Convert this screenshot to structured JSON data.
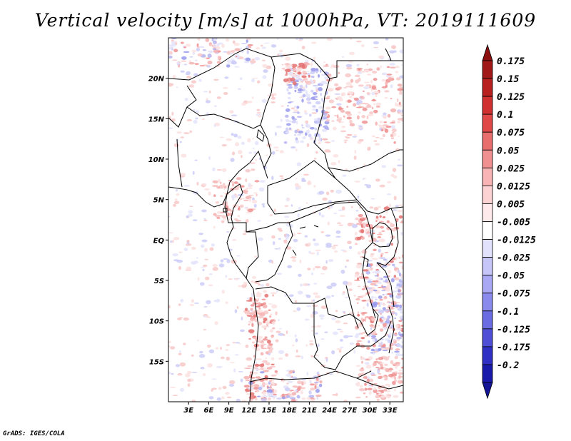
{
  "title": "Vertical velocity [m/s] at 1000hPa, VT: 2019111609",
  "credit": "GrADS: IGES/COLA",
  "map": {
    "lon_range": [
      0,
      35
    ],
    "lat_range": [
      -20,
      25
    ],
    "lat_ticks": [
      {
        "value": 20,
        "label": "20N"
      },
      {
        "value": 15,
        "label": "15N"
      },
      {
        "value": 10,
        "label": "10N"
      },
      {
        "value": 5,
        "label": "5N"
      },
      {
        "value": 0,
        "label": "EQ"
      },
      {
        "value": -5,
        "label": "5S"
      },
      {
        "value": -10,
        "label": "10S"
      },
      {
        "value": -15,
        "label": "15S"
      }
    ],
    "lon_ticks": [
      {
        "value": 3,
        "label": "3E"
      },
      {
        "value": 6,
        "label": "6E"
      },
      {
        "value": 9,
        "label": "9E"
      },
      {
        "value": 12,
        "label": "12E"
      },
      {
        "value": 15,
        "label": "15E"
      },
      {
        "value": 18,
        "label": "18E"
      },
      {
        "value": 21,
        "label": "21E"
      },
      {
        "value": 24,
        "label": "24E"
      },
      {
        "value": 27,
        "label": "27E"
      },
      {
        "value": 30,
        "label": "30E"
      },
      {
        "value": 33,
        "label": "33E"
      }
    ]
  },
  "colorbar": {
    "levels": [
      {
        "label": "0.175",
        "color": "#a01818"
      },
      {
        "label": "0.15",
        "color": "#b82020"
      },
      {
        "label": "0.125",
        "color": "#d03030"
      },
      {
        "label": "0.1",
        "color": "#e04848"
      },
      {
        "label": "0.075",
        "color": "#e86e6e"
      },
      {
        "label": "0.05",
        "color": "#f09090"
      },
      {
        "label": "0.025",
        "color": "#f8b4b4"
      },
      {
        "label": "0.0125",
        "color": "#fcd2d2"
      },
      {
        "label": "0.005",
        "color": "#feeaea"
      },
      {
        "label": "-0.005",
        "color": "#ffffff"
      },
      {
        "label": "-0.0125",
        "color": "#e2e2fc"
      },
      {
        "label": "-0.025",
        "color": "#c6c6f8"
      },
      {
        "label": "-0.05",
        "color": "#a8a8f4"
      },
      {
        "label": "-0.075",
        "color": "#8a8aec"
      },
      {
        "label": "-0.1",
        "color": "#6c6ce2"
      },
      {
        "label": "-0.125",
        "color": "#4e4ed6"
      },
      {
        "label": "-0.175",
        "color": "#3030c4"
      },
      {
        "label": "-0.2",
        "color": "#1a1aaa"
      }
    ],
    "top_color": "#8c1010",
    "bottom_color": "#141496"
  }
}
